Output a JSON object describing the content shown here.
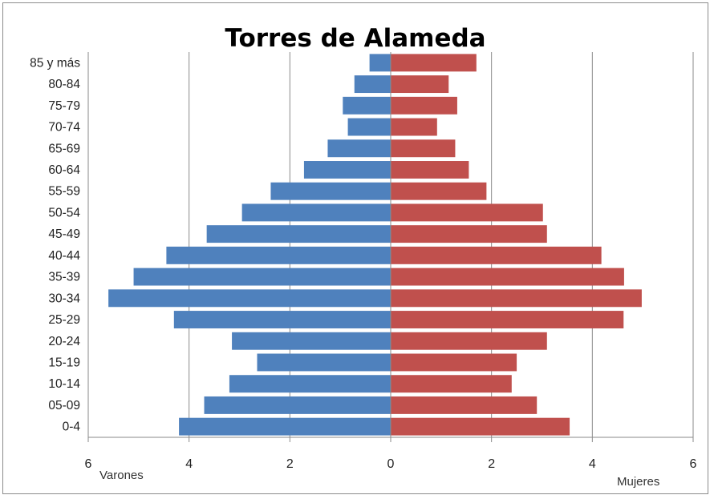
{
  "chart_data": {
    "type": "bar",
    "orientation": "horizontal",
    "layout": "population-pyramid",
    "title": "Torres de Alameda",
    "categories": [
      "0-4",
      "05-09",
      "10-14",
      "15-19",
      "20-24",
      "25-29",
      "30-34",
      "35-39",
      "40-44",
      "45-49",
      "50-54",
      "55-59",
      "60-64",
      "65-69",
      "70-74",
      "75-79",
      "80-84",
      "85 y más"
    ],
    "series": [
      {
        "name": "Varones",
        "side": "left",
        "color": "#4f81bd",
        "values": [
          4.2,
          3.7,
          3.2,
          2.65,
          3.15,
          4.3,
          5.6,
          5.1,
          4.45,
          3.65,
          2.95,
          2.38,
          1.72,
          1.25,
          0.85,
          0.95,
          0.72,
          0.42
        ]
      },
      {
        "name": "Mujeres",
        "side": "right",
        "color": "#c0504d",
        "values": [
          3.55,
          2.9,
          2.4,
          2.5,
          3.1,
          4.62,
          4.98,
          4.63,
          4.18,
          3.1,
          3.02,
          1.9,
          1.55,
          1.28,
          0.92,
          1.32,
          1.15,
          1.7
        ]
      }
    ],
    "xlim": [
      -6,
      6
    ],
    "x_ticks": [
      6,
      4,
      2,
      0,
      2,
      4,
      6
    ],
    "grid": "vertical",
    "legend": "none",
    "side_labels": {
      "left": "Varones",
      "right": "Mujeres"
    }
  }
}
